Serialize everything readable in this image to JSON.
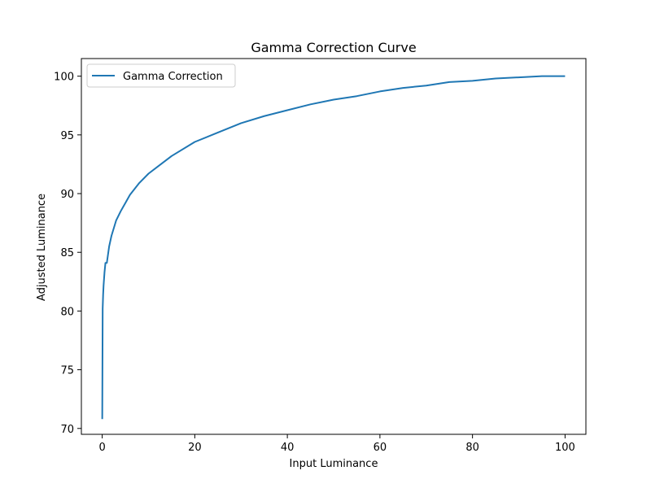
{
  "chart_data": {
    "type": "line",
    "title": "Gamma Correction Curve",
    "xlabel": "Input Luminance",
    "ylabel": "Adjusted Luminance",
    "xlim": [
      -4.5,
      104.5
    ],
    "ylim": [
      69.5,
      101.5
    ],
    "xticks": [
      0,
      20,
      40,
      60,
      80,
      100
    ],
    "yticks": [
      70,
      75,
      80,
      85,
      90,
      95,
      100
    ],
    "grid": false,
    "legend_position": "upper-left",
    "series": [
      {
        "name": "Gamma Correction",
        "color": "#1f77b4",
        "curve": "y = 100 * (x / 100) ^ 0.075",
        "x": [
          0.01,
          0.1,
          0.2,
          0.3,
          0.5,
          0.7,
          1,
          1.5,
          2,
          3,
          4,
          5,
          6,
          8,
          10,
          12,
          15,
          20,
          25,
          30,
          35,
          40,
          45,
          50,
          55,
          60,
          65,
          70,
          75,
          80,
          85,
          90,
          95,
          100
        ],
        "y": [
          70.8,
          80.2,
          81.4,
          82.2,
          83.3,
          84.1,
          84.1,
          85.5,
          86.4,
          87.7,
          88.5,
          89.2,
          89.9,
          90.9,
          91.7,
          92.3,
          93.2,
          94.4,
          95.2,
          96.0,
          96.6,
          97.1,
          97.6,
          98.0,
          98.3,
          98.7,
          99.0,
          99.2,
          99.5,
          99.6,
          99.8,
          99.9,
          100.0,
          100.0
        ]
      }
    ]
  }
}
